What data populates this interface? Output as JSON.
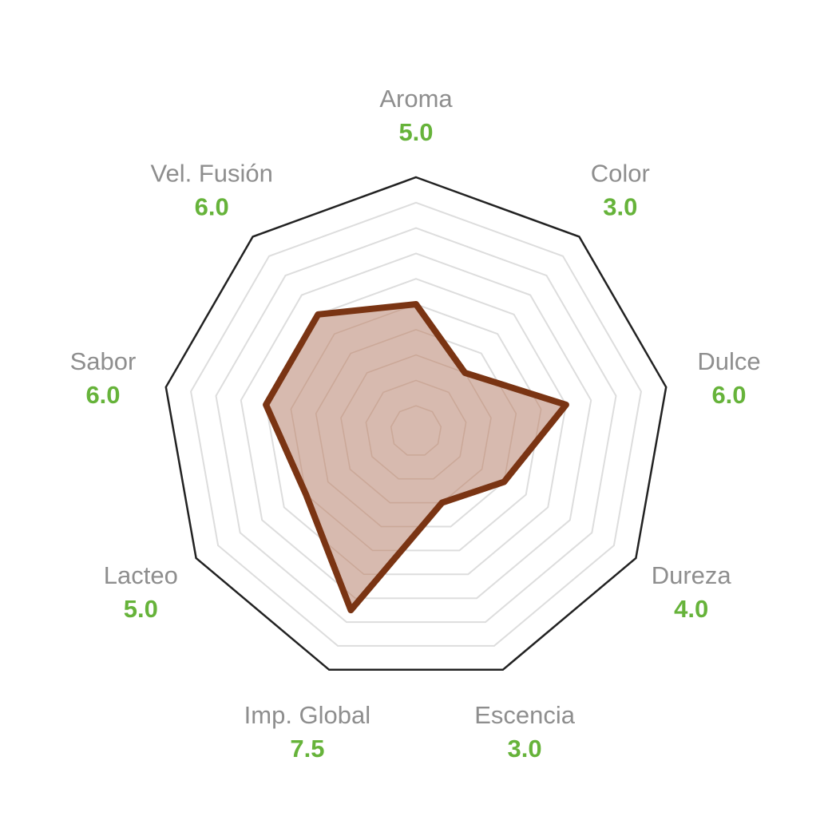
{
  "chart_data": {
    "type": "radar",
    "scale_max": 10,
    "rings": 10,
    "axes": [
      {
        "label": "Aroma",
        "value": 5.0,
        "value_text": "5.0"
      },
      {
        "label": "Color",
        "value": 3.0,
        "value_text": "3.0"
      },
      {
        "label": "Dulce",
        "value": 6.0,
        "value_text": "6.0"
      },
      {
        "label": "Dureza",
        "value": 4.0,
        "value_text": "4.0"
      },
      {
        "label": "Escencia",
        "value": 3.0,
        "value_text": "3.0"
      },
      {
        "label": "Imp. Global",
        "value": 7.5,
        "value_text": "7.5"
      },
      {
        "label": "Lacteo",
        "value": 5.0,
        "value_text": "5.0"
      },
      {
        "label": "Sabor",
        "value": 6.0,
        "value_text": "6.0"
      },
      {
        "label": "Vel. Fusión",
        "value": 6.0,
        "value_text": "6.0"
      }
    ],
    "colors": {
      "series_line": "#7a3413",
      "series_fill": "#d4b4a8",
      "value_text": "#66b33a",
      "label_text": "#8e8e8e",
      "outer_frame": "#222222",
      "grid": "#dddddd"
    }
  }
}
